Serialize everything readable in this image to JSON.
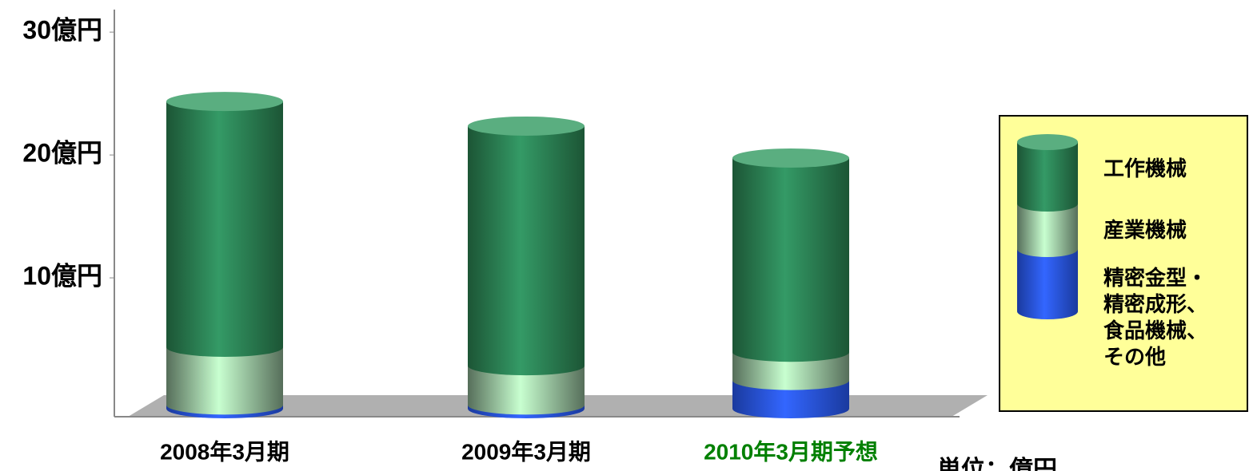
{
  "chart_data": {
    "type": "cylinder_stacked_bar",
    "categories": [
      "2008年3月期",
      "2009年3月期",
      "2010年3月期予想"
    ],
    "category_label_colors": [
      "#000000",
      "#000000",
      "#008000"
    ],
    "series": [
      {
        "name": "精密金型・精密成形、食品機械、その他",
        "color": "#3366ff",
        "values": [
          0.3,
          0.3,
          2.3
        ]
      },
      {
        "name": "産業機械",
        "color": "#c8ffd0",
        "values": [
          4.7,
          3.2,
          2.3
        ]
      },
      {
        "name": "工作機械",
        "color": "#349a66",
        "values": [
          20,
          19.5,
          15.8
        ]
      }
    ],
    "ylim": [
      0,
      33
    ],
    "yticks": [
      {
        "value": 10,
        "label": "10億円"
      },
      {
        "value": 20,
        "label": "20億円"
      },
      {
        "value": 30,
        "label": "30億円"
      }
    ],
    "unit_label": "単位：億円",
    "legend_position": "right"
  }
}
